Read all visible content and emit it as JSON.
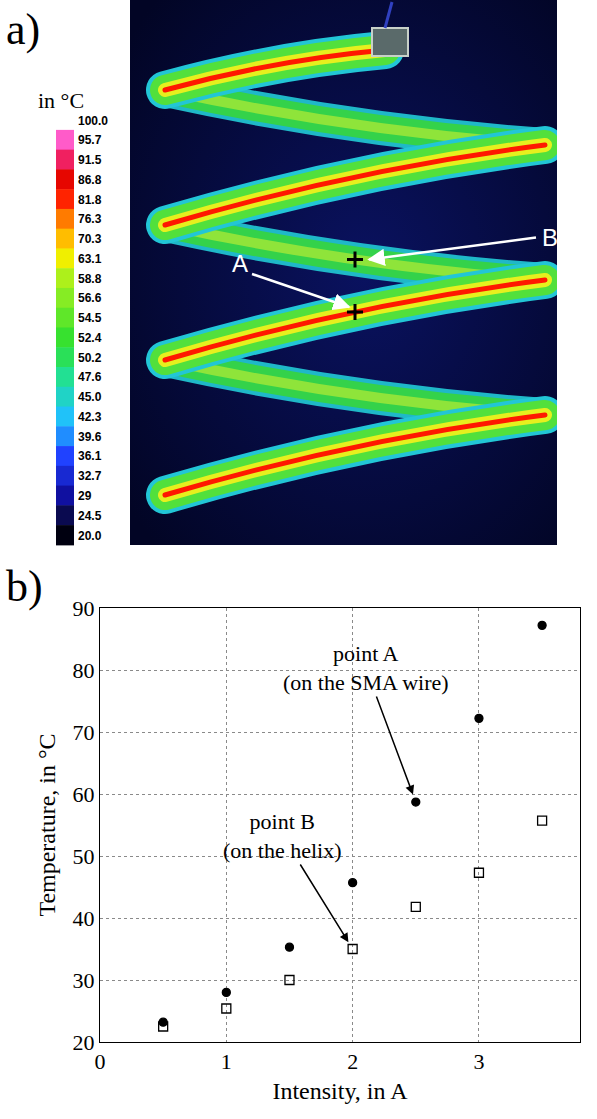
{
  "panel_a": {
    "letter": "a)",
    "type": "thermal_image",
    "colorbar": {
      "title": "in °C",
      "ticks": [
        {
          "value": 100,
          "label": "100.0"
        },
        95.7,
        91.5,
        86.8,
        81.8,
        76.3,
        70.3,
        63.1,
        58.8,
        56.6,
        54.5,
        52.4,
        50.2,
        47.6,
        {
          "value": 45,
          "label": "45.0"
        },
        42.3,
        39.6,
        36.1,
        32.7,
        29,
        24.5,
        {
          "value": 20,
          "label": "20.0"
        }
      ]
    },
    "points": [
      {
        "label": "A"
      },
      {
        "label": "B"
      }
    ]
  },
  "chart_data": {
    "letter": "b)",
    "type": "scatter",
    "x_label": "Intensity, in A",
    "y_label": "Temperature, in °C",
    "x": [
      0.5,
      1,
      1.5,
      2,
      2.5,
      3,
      3.5
    ],
    "series": [
      {
        "values": [
          23.2,
          28,
          35.3,
          45.7,
          58.7,
          72.2,
          87.2
        ],
        "color": "#000000",
        "marker": "filled_circle"
      },
      {
        "values": [
          22.5,
          25.4,
          30,
          35,
          41.8,
          47.3,
          55.7
        ],
        "color": "#000000",
        "marker": "open_square"
      }
    ],
    "xlim": [
      0,
      3.8
    ],
    "ylim": [
      20,
      90
    ],
    "xticks": [
      0,
      1,
      2,
      3
    ],
    "yticks": [
      20,
      30,
      40,
      50,
      60,
      70,
      80,
      90
    ],
    "grid": true,
    "annotations": [
      {
        "text": "point A\n(on the SMA wire)",
        "x": 2.5,
        "y": 58.7
      },
      {
        "text": "point B\n(on the helix)",
        "x": 2,
        "y": 35
      }
    ]
  }
}
